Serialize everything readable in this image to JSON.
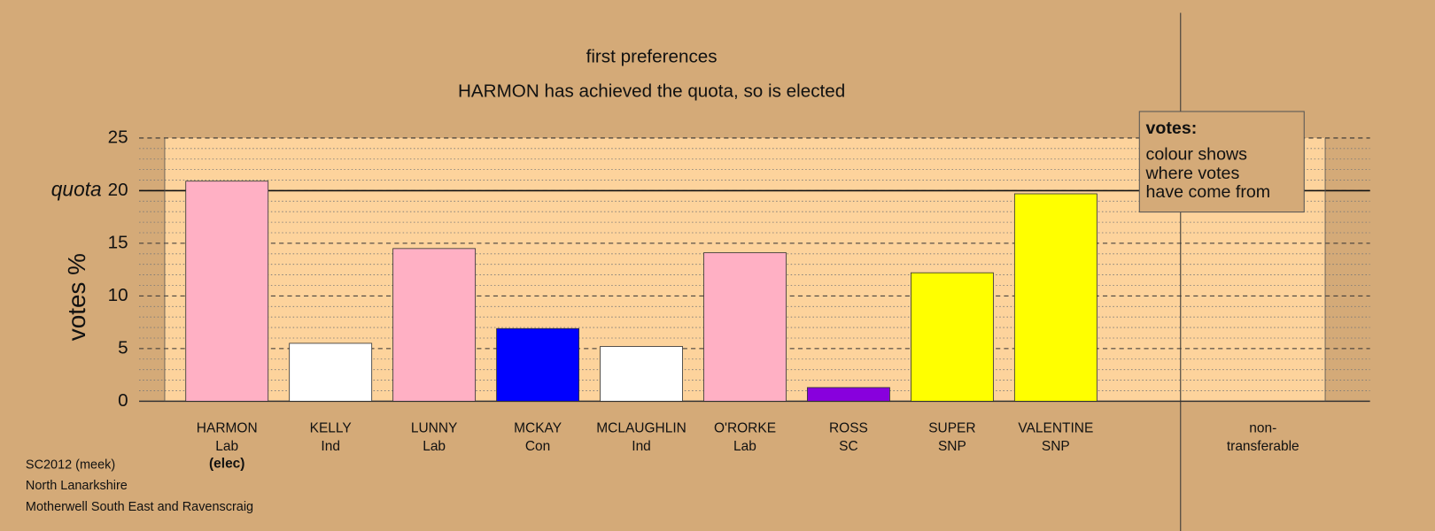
{
  "chart_data": {
    "type": "bar",
    "title": "first preferences",
    "subtitle": "HARMON has achieved the quota, so is elected",
    "y_label": "votes %",
    "categories": [
      "HARMON",
      "KELLY",
      "LUNNY",
      "MCKAY",
      "MCLAUGHLIN",
      "O'RORKE",
      "ROSS",
      "SUPER",
      "VALENTINE",
      "non-"
    ],
    "sublabels": [
      "Lab",
      "Ind",
      "Lab",
      "Con",
      "Ind",
      "Lab",
      "SC",
      "SNP",
      "SNP",
      "transferable"
    ],
    "elected_label": "(elec)",
    "values": [
      20.9,
      5.5,
      14.5,
      6.9,
      5.2,
      14.1,
      1.3,
      12.2,
      19.7,
      0
    ],
    "colors": [
      "#ffb0c4",
      "#ffffff",
      "#ffb0c4",
      "#0000ff",
      "#ffffff",
      "#ffb0c4",
      "#8800dd",
      "#ffff00",
      "#ffff00",
      "#888888"
    ],
    "ylim": [
      0,
      25
    ],
    "yticks": [
      0,
      5,
      10,
      15,
      20,
      25
    ],
    "minor_yticks": [
      1,
      2,
      3,
      4,
      6,
      7,
      8,
      9,
      11,
      12,
      13,
      14,
      16,
      17,
      18,
      19,
      21,
      22,
      23,
      24
    ],
    "quota": 20,
    "quota_label": "quota",
    "grid": true,
    "legend": {
      "title": "votes:",
      "lines": [
        "colour shows",
        "where votes",
        "have come from"
      ]
    },
    "footer": [
      "SC2012 (meek)",
      "North Lanarkshire",
      "Motherwell South East and Ravenscraig"
    ]
  }
}
